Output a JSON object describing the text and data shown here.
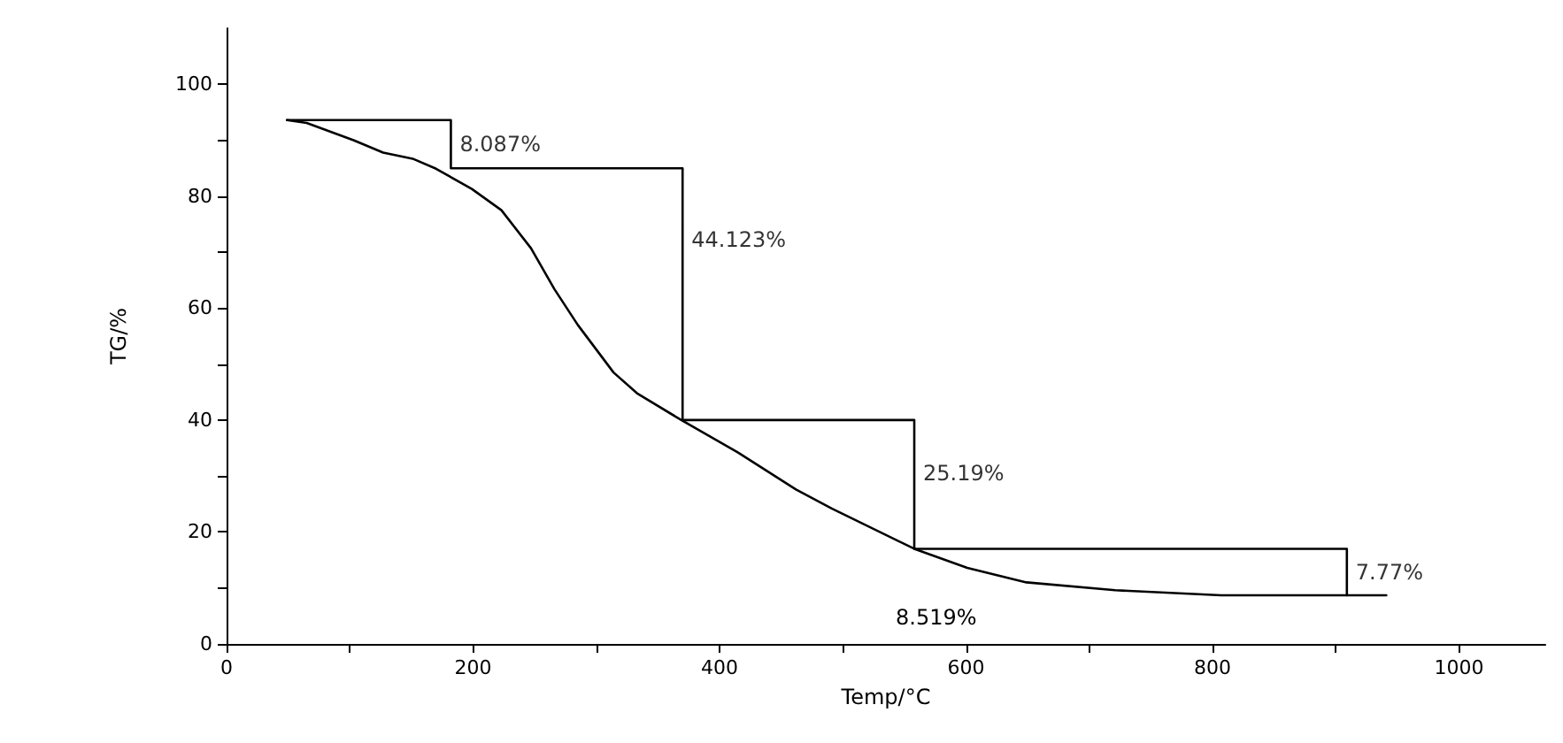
{
  "chart_data": {
    "type": "line",
    "xlabel": "Temp/°C",
    "ylabel": "TG/%",
    "xlim": [
      0,
      1070
    ],
    "ylim": [
      0,
      110
    ],
    "xticks": [
      0,
      {
        "value": 100,
        "label": null
      },
      200,
      {
        "value": 300,
        "label": null
      },
      400,
      {
        "value": 500,
        "label": null
      },
      600,
      {
        "value": 700,
        "label": null
      },
      800,
      {
        "value": 900,
        "label": null
      },
      1000
    ],
    "yticks": [
      0,
      {
        "value": 10,
        "label": null
      },
      20,
      {
        "value": 30,
        "label": null
      },
      40,
      {
        "value": 50,
        "label": null
      },
      60,
      {
        "value": 70,
        "label": null
      },
      80,
      {
        "value": 90,
        "label": null
      },
      100
    ],
    "grid": false,
    "marker": "none",
    "line_style": "solid",
    "series": [
      {
        "color": "#000000",
        "x": [
          49,
          65,
          103,
          127,
          151,
          170,
          199,
          223,
          247,
          266,
          285,
          314,
          333,
          369,
          415,
          462,
          491,
          558,
          601,
          649,
          721,
          807,
          941
        ],
        "values": [
          93.6,
          93.1,
          90,
          87.8,
          86.7,
          84.9,
          81.3,
          77.5,
          70.7,
          63.4,
          57,
          48.5,
          44.8,
          40,
          34.2,
          27.6,
          24.2,
          17,
          13.6,
          11,
          9.6,
          8.7,
          8.7
        ]
      },
      {
        "type": "step",
        "color": "#000000",
        "x": [
          49,
          182,
          370,
          558,
          909
        ],
        "values": [
          93.6,
          85,
          40,
          17,
          8.7
        ]
      }
    ],
    "annotations": [
      {
        "text": "8.087%",
        "x": 182,
        "y": 89.3
      },
      {
        "text": "44.123%",
        "x": 370,
        "y": 72.3
      },
      {
        "text": "25.19%",
        "x": 558,
        "y": 30.5
      },
      {
        "text": "7.77%",
        "x": 909,
        "y": 12.85
      },
      "8.519%"
    ]
  }
}
